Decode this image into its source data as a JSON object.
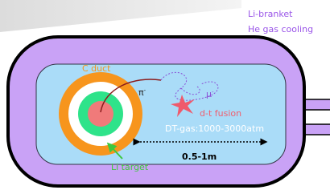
{
  "legend": {
    "blanket": "Li-branket",
    "cooling": "He gas cooling"
  },
  "labels": {
    "duct": "C duct",
    "pion": "π",
    "pion_charge": "-",
    "muon": "μ",
    "muon_charge": "-",
    "fusion": "d-t fusion",
    "gas": "DT-gas:1000-3000atm",
    "size": "0.5-1m",
    "target": "Li target"
  }
}
